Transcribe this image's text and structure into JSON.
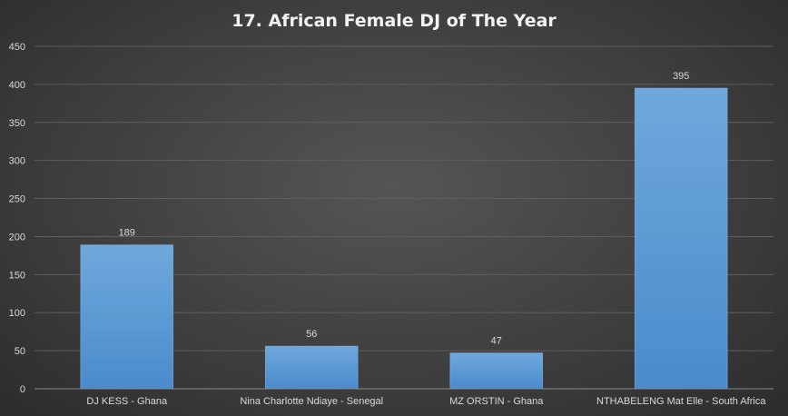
{
  "chart_data": {
    "type": "bar",
    "title": "17. African Female DJ of The Year",
    "categories": [
      "DJ KESS - Ghana",
      "Nina Charlotte Ndiaye - Senegal",
      "MZ ORSTIN - Ghana",
      "NTHABELENG Mat Elle - South Africa"
    ],
    "values": [
      189,
      56,
      47,
      395
    ],
    "ylim": [
      0,
      450
    ],
    "yticks": [
      0,
      50,
      100,
      150,
      200,
      250,
      300,
      350,
      400,
      450
    ],
    "grid": true,
    "data_labels": true,
    "bar_color": "#5b9bd5"
  }
}
